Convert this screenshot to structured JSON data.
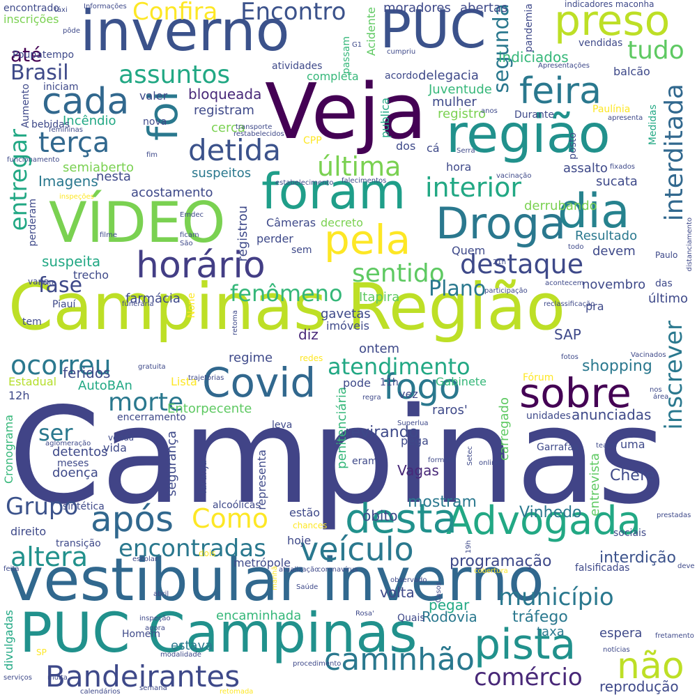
{
  "palette": {
    "dark_purple": "#440154",
    "indigo": "#3b4a8a",
    "slate_blue": "#31608d",
    "teal": "#23888e",
    "green_teal": "#22a884",
    "green": "#5ec962",
    "lime": "#bddf26",
    "yellow": "#fde725"
  },
  "words": [
    {
      "text": "Campinas",
      "color": "#414487"
    },
    {
      "text": "Campinas Região",
      "color": "#bddf26"
    },
    {
      "text": "vestibular inverno",
      "color": "#31688e"
    },
    {
      "text": "PUC Campinas",
      "color": "#21918c"
    },
    {
      "text": "VÍDEO",
      "color": "#7ad151"
    },
    {
      "text": "Veja",
      "color": "#440154"
    },
    {
      "text": "inverno",
      "color": "#3b528b"
    },
    {
      "text": "PUC",
      "color": "#3b528b"
    },
    {
      "text": "região",
      "color": "#21918c"
    },
    {
      "text": "foram",
      "color": "#1f9e89"
    },
    {
      "text": "preso",
      "color": "#bddf26"
    },
    {
      "text": "Droga",
      "color": "#2a788e"
    },
    {
      "text": "Advogada",
      "color": "#22a884"
    },
    {
      "text": "desta",
      "color": "#21918c"
    },
    {
      "text": "pista",
      "color": "#21918c"
    },
    {
      "text": "Covid",
      "color": "#31688e"
    },
    {
      "text": "sobre",
      "color": "#440154"
    },
    {
      "text": "dia",
      "color": "#26828e"
    },
    {
      "text": "pela",
      "color": "#fde725"
    },
    {
      "text": "horário",
      "color": "#433e85"
    },
    {
      "text": "cada",
      "color": "#31688e"
    },
    {
      "text": "feira",
      "color": "#2a788e"
    },
    {
      "text": "foi",
      "color": "#2a788e"
    },
    {
      "text": "após",
      "color": "#31688e"
    },
    {
      "text": "fogo",
      "color": "#2a788e"
    },
    {
      "text": "veículo",
      "color": "#2a788e"
    },
    {
      "text": "Bandeirantes",
      "color": "#3e4989"
    },
    {
      "text": "caminhão",
      "color": "#2a788e"
    },
    {
      "text": "não",
      "color": "#bddf26"
    },
    {
      "text": "comércio",
      "color": "#482878"
    },
    {
      "text": "município",
      "color": "#2a788e"
    },
    {
      "text": "encontradas",
      "color": "#2a788e"
    },
    {
      "text": "altera",
      "color": "#21918c"
    },
    {
      "text": "Como",
      "color": "#fde725"
    },
    {
      "text": "morte",
      "color": "#2a788e"
    },
    {
      "text": "ocorreu",
      "color": "#2a788e"
    },
    {
      "text": "atendimento",
      "color": "#22a884"
    },
    {
      "text": "destaque",
      "color": "#3e4989"
    },
    {
      "text": "detida",
      "color": "#3b528b"
    },
    {
      "text": "terça",
      "color": "#31688e"
    },
    {
      "text": "assuntos",
      "color": "#22a884"
    },
    {
      "text": "última",
      "color": "#7ad151"
    },
    {
      "text": "interior",
      "color": "#22a884"
    },
    {
      "text": "sentido",
      "color": "#5ec962"
    },
    {
      "text": "fenômeno",
      "color": "#35b779"
    },
    {
      "text": "interditada",
      "color": "#31688e"
    },
    {
      "text": "inscrever",
      "color": "#2a788e"
    },
    {
      "text": "entregar",
      "color": "#22a884"
    },
    {
      "text": "segunda",
      "color": "#2a788e"
    },
    {
      "text": "tudo",
      "color": "#5ec962"
    },
    {
      "text": "Encontro",
      "color": "#3b528b"
    },
    {
      "text": "Confira",
      "color": "#fde725"
    },
    {
      "text": "Brasil",
      "color": "#3e4989"
    },
    {
      "text": "até",
      "color": "#440154"
    },
    {
      "text": "ser",
      "color": "#2a788e"
    },
    {
      "text": "Grupo",
      "color": "#3b528b"
    },
    {
      "text": "fase",
      "color": "#3e4989"
    },
    {
      "text": "Plano",
      "color": "#2a788e"
    },
    {
      "text": "shopping",
      "color": "#2a788e"
    },
    {
      "text": "programação",
      "color": "#3e4989"
    },
    {
      "text": "interdição",
      "color": "#3b528b"
    },
    {
      "text": "tráfego",
      "color": "#2a788e"
    },
    {
      "text": "encaminhada",
      "color": "#35b779"
    },
    {
      "text": "Rodovia",
      "color": "#2a788e"
    },
    {
      "text": "volta",
      "color": "#3e4989"
    },
    {
      "text": "pegar",
      "color": "#22a884"
    },
    {
      "text": "estava",
      "color": "#2a788e"
    },
    {
      "text": "taxa",
      "color": "#2a788e"
    },
    {
      "text": "espera",
      "color": "#3e4989"
    },
    {
      "text": "reprodução",
      "color": "#3e4989"
    },
    {
      "text": "mostram",
      "color": "#2a788e"
    },
    {
      "text": "Vinhedo",
      "color": "#2a788e"
    },
    {
      "text": "Chefe",
      "color": "#3e4989"
    },
    {
      "text": "SAP",
      "color": "#3e4989"
    },
    {
      "text": "revirando",
      "color": "#3e4989"
    },
    {
      "text": "anunciadas",
      "color": "#3e4989"
    },
    {
      "text": "Vagas",
      "color": "#482878"
    },
    {
      "text": "óbito",
      "color": "#3e4989"
    },
    {
      "text": "moradores",
      "color": "#3e4989"
    },
    {
      "text": "abertas",
      "color": "#3e4989"
    },
    {
      "text": "indiciados",
      "color": "#35b779"
    },
    {
      "text": "delegacia",
      "color": "#3e4989"
    },
    {
      "text": "Juventude",
      "color": "#35b779"
    },
    {
      "text": "bloqueada",
      "color": "#482878"
    },
    {
      "text": "registram",
      "color": "#3e4989"
    },
    {
      "text": "suspeitos",
      "color": "#2a788e"
    },
    {
      "text": "acostamento",
      "color": "#3e4989"
    },
    {
      "text": "Imagens",
      "color": "#2a788e"
    },
    {
      "text": "semiaberto",
      "color": "#7ad151"
    },
    {
      "text": "suspeita",
      "color": "#22a884"
    },
    {
      "text": "farmácia",
      "color": "#3e4989"
    },
    {
      "text": "feridos",
      "color": "#3e4989"
    },
    {
      "text": "regime",
      "color": "#3e4989"
    },
    {
      "text": "Estadual",
      "color": "#b5de2b"
    },
    {
      "text": "AutoBAn",
      "color": "#22a884"
    },
    {
      "text": "Lista",
      "color": "#fde725"
    },
    {
      "text": "Entorpecente",
      "color": "#5ec962"
    },
    {
      "text": "gavetas",
      "color": "#3e4989"
    },
    {
      "text": "Itapira",
      "color": "#5ec962"
    },
    {
      "text": "imóveis",
      "color": "#3e4989"
    },
    {
      "text": "diz",
      "color": "#482878"
    },
    {
      "text": "ontem",
      "color": "#3e4989"
    },
    {
      "text": "Cronograma",
      "color": "#35b779"
    },
    {
      "text": "segurança",
      "color": "#3e4989"
    },
    {
      "text": "penitenciária",
      "color": "#35b779"
    },
    {
      "text": "carregado",
      "color": "#5ec962"
    },
    {
      "text": "entrevista",
      "color": "#5ec962"
    },
    {
      "text": "registrou",
      "color": "#3e4989"
    },
    {
      "text": "Câmeras",
      "color": "#3e4989"
    },
    {
      "text": "decreto",
      "color": "#7ad151"
    },
    {
      "text": "Resultado",
      "color": "#2a788e"
    },
    {
      "text": "devem",
      "color": "#3e4989"
    },
    {
      "text": "novembro",
      "color": "#3e4989"
    },
    {
      "text": "último",
      "color": "#3e4989"
    },
    {
      "text": "derrubando",
      "color": "#7ad151"
    },
    {
      "text": "sucata",
      "color": "#3e4989"
    },
    {
      "text": "assalto",
      "color": "#3e4989"
    },
    {
      "text": "hora",
      "color": "#3e4989"
    },
    {
      "text": "nesta",
      "color": "#3e4989"
    },
    {
      "text": "cerca",
      "color": "#7ad151"
    },
    {
      "text": "Incêndio",
      "color": "#22a884"
    },
    {
      "text": "publica",
      "color": "#22a884"
    },
    {
      "text": "mulher",
      "color": "#3e4989"
    },
    {
      "text": "registro",
      "color": "#7ad151"
    },
    {
      "text": "Durante",
      "color": "#3e4989"
    },
    {
      "text": "Paulínia",
      "color": "#fde725"
    },
    {
      "text": "Medidas",
      "color": "#22a884"
    },
    {
      "text": "posto",
      "color": "#3e4989"
    },
    {
      "text": "vendidas",
      "color": "#3e4989"
    },
    {
      "text": "indicadores maconha",
      "color": "#3e4989"
    },
    {
      "text": "Acidente",
      "color": "#5ec962"
    },
    {
      "text": "completa",
      "color": "#35b779"
    },
    {
      "text": "atividades",
      "color": "#3e4989"
    },
    {
      "text": "acordo",
      "color": "#3e4989"
    },
    {
      "text": "balcão",
      "color": "#3e4989"
    },
    {
      "text": "pandemia",
      "color": "#3e4989"
    },
    {
      "text": "Poupatempo",
      "color": "#3e4989"
    },
    {
      "text": "Aumento",
      "color": "#3e4989"
    },
    {
      "text": "iniciam",
      "color": "#3e4989"
    },
    {
      "text": "bebidas",
      "color": "#3e4989"
    },
    {
      "text": "valer",
      "color": "#3e4989"
    },
    {
      "text": "nova",
      "color": "#3e4989"
    },
    {
      "text": "dos",
      "color": "#3e4989"
    },
    {
      "text": "cá",
      "color": "#3e4989"
    },
    {
      "text": "CPP",
      "color": "#fde725"
    },
    {
      "text": "inscrições",
      "color": "#7ad151"
    },
    {
      "text": "encontrado",
      "color": "#3e4989"
    },
    {
      "text": "perderam",
      "color": "#3e4989"
    },
    {
      "text": "perder",
      "color": "#3e4989"
    },
    {
      "text": "sem",
      "color": "#3e4989"
    },
    {
      "text": "trecho",
      "color": "#3e4989"
    },
    {
      "text": "varia",
      "color": "#3e4989"
    },
    {
      "text": "Piauí",
      "color": "#3e4989"
    },
    {
      "text": "tem",
      "color": "#3e4989"
    },
    {
      "text": "None",
      "color": "#fde725"
    },
    {
      "text": "Quem",
      "color": "#3e4989"
    },
    {
      "text": "pra",
      "color": "#3e4989"
    },
    {
      "text": "12h",
      "color": "#3e4989"
    },
    {
      "text": "pode",
      "color": "#3e4989"
    },
    {
      "text": "11h",
      "color": "#3e4989"
    },
    {
      "text": "Gabinete",
      "color": "#35b779"
    },
    {
      "text": "vez",
      "color": "#3e4989"
    },
    {
      "text": "raros'",
      "color": "#3e4989"
    },
    {
      "text": "Fórum",
      "color": "#fde725"
    },
    {
      "text": "unidades",
      "color": "#3e4989"
    },
    {
      "text": "uma",
      "color": "#3e4989"
    },
    {
      "text": "vida",
      "color": "#3e4989"
    },
    {
      "text": "detentos",
      "color": "#3e4989"
    },
    {
      "text": "meses",
      "color": "#3e4989"
    },
    {
      "text": "doença",
      "color": "#3e4989"
    },
    {
      "text": "pega",
      "color": "#3e4989"
    },
    {
      "text": "eram",
      "color": "#3e4989"
    },
    {
      "text": "Garrafas",
      "color": "#3e4989"
    },
    {
      "text": "representa",
      "color": "#3e4989"
    },
    {
      "text": "leva",
      "color": "#3e4989"
    },
    {
      "text": "sintética",
      "color": "#3e4989"
    },
    {
      "text": "laranja",
      "color": "#3e4989"
    },
    {
      "text": "alcoólicas",
      "color": "#3e4989"
    },
    {
      "text": "direito",
      "color": "#3e4989"
    },
    {
      "text": "transição",
      "color": "#3e4989"
    },
    {
      "text": "hoje",
      "color": "#3e4989"
    },
    {
      "text": "estão",
      "color": "#3e4989"
    },
    {
      "text": "metrópole",
      "color": "#3e4989"
    },
    {
      "text": "chances",
      "color": "#fde725"
    },
    {
      "text": "dois",
      "color": "#fde725"
    },
    {
      "text": "sociais",
      "color": "#3e4989"
    },
    {
      "text": "falsificadas",
      "color": "#3e4989"
    },
    {
      "text": "Quais",
      "color": "#3e4989"
    },
    {
      "text": "Homem",
      "color": "#3e4989"
    },
    {
      "text": "divulgadas",
      "color": "#22a884"
    },
    {
      "text": "SP",
      "color": "#fde725"
    },
    {
      "text": "encerramento",
      "color": "#3e4989"
    },
    {
      "text": "venda",
      "color": "#3e4989"
    },
    {
      "text": "G1",
      "color": "#3e4989"
    },
    {
      "text": "passam",
      "color": "#35b779"
    },
    {
      "text": "táxi",
      "color": "#3e4989"
    },
    {
      "text": "pôde",
      "color": "#3e4989"
    },
    {
      "text": "Informações",
      "color": "#3e4989"
    },
    {
      "text": "cumpriu",
      "color": "#3e4989"
    },
    {
      "text": "Apresentações",
      "color": "#3e4989"
    },
    {
      "text": "anos",
      "color": "#3e4989"
    },
    {
      "text": "apresenta",
      "color": "#3e4989"
    },
    {
      "text": "transporte",
      "color": "#3e4989"
    },
    {
      "text": "restabelecidos",
      "color": "#3e4989"
    },
    {
      "text": "femininas",
      "color": "#3e4989"
    },
    {
      "text": "funcionamento",
      "color": "#3e4989"
    },
    {
      "text": "fim",
      "color": "#3e4989"
    },
    {
      "text": "Serra",
      "color": "#3e4989"
    },
    {
      "text": "fixados",
      "color": "#3e4989"
    },
    {
      "text": "vacinação",
      "color": "#3e4989"
    },
    {
      "text": "estabelecimento",
      "color": "#3e4989"
    },
    {
      "text": "falecimentos",
      "color": "#3e4989"
    },
    {
      "text": "inspeções",
      "color": "#fde725"
    },
    {
      "text": "Emdec",
      "color": "#3e4989"
    },
    {
      "text": "filme",
      "color": "#3e4989"
    },
    {
      "text": "ficam",
      "color": "#3e4989"
    },
    {
      "text": "São",
      "color": "#3e4989"
    },
    {
      "text": "todo",
      "color": "#3e4989"
    },
    {
      "text": "Paulo",
      "color": "#3e4989"
    },
    {
      "text": "21h",
      "color": "#3e4989"
    },
    {
      "text": "distanciamento",
      "color": "#3e4989"
    },
    {
      "text": "noite",
      "color": "#3e4989"
    },
    {
      "text": "acontecem",
      "color": "#3e4989"
    },
    {
      "text": "participação",
      "color": "#3e4989"
    },
    {
      "text": "reclassificação",
      "color": "#3e4989"
    },
    {
      "text": "das",
      "color": "#3e4989"
    },
    {
      "text": "funerária",
      "color": "#3e4989"
    },
    {
      "text": "retoma",
      "color": "#3e4989"
    },
    {
      "text": "gratuita",
      "color": "#3e4989"
    },
    {
      "text": "trajetórias",
      "color": "#3e4989"
    },
    {
      "text": "redes",
      "color": "#fde725"
    },
    {
      "text": "fotos",
      "color": "#3e4989"
    },
    {
      "text": "Vacinados",
      "color": "#3e4989"
    },
    {
      "text": "nos",
      "color": "#3e4989"
    },
    {
      "text": "área",
      "color": "#3e4989"
    },
    {
      "text": "regra",
      "color": "#3e4989"
    },
    {
      "text": "Superlua",
      "color": "#3e4989"
    },
    {
      "text": "teatro",
      "color": "#3e4989"
    },
    {
      "text": "aglomeração",
      "color": "#3e4989"
    },
    {
      "text": "formato",
      "color": "#3e4989"
    },
    {
      "text": "online",
      "color": "#3e4989"
    },
    {
      "text": "Setec",
      "color": "#3e4989"
    },
    {
      "text": "escolar",
      "color": "#3e4989"
    },
    {
      "text": "atualização",
      "color": "#3e4989"
    },
    {
      "text": "coronavírus",
      "color": "#3e4989"
    },
    {
      "text": "cobertura",
      "color": "#fde725"
    },
    {
      "text": "observado",
      "color": "#3e4989"
    },
    {
      "text": "Saúde",
      "color": "#3e4989"
    },
    {
      "text": "Casos",
      "color": "#3e4989"
    },
    {
      "text": "19h",
      "color": "#3e4989"
    },
    {
      "text": "prestadas",
      "color": "#3e4989"
    },
    {
      "text": "deve",
      "color": "#3e4989"
    },
    {
      "text": "feita",
      "color": "#3e4989"
    },
    {
      "text": "abril",
      "color": "#3e4989"
    },
    {
      "text": "manhã",
      "color": "#fde725"
    },
    {
      "text": "Rosa'",
      "color": "#3e4989"
    },
    {
      "text": "inspeção",
      "color": "#3e4989"
    },
    {
      "text": "agora",
      "color": "#3e4989"
    },
    {
      "text": "modalidade",
      "color": "#3e4989"
    },
    {
      "text": "fretamento",
      "color": "#3e4989"
    },
    {
      "text": "notícias",
      "color": "#3e4989"
    },
    {
      "text": "serviços",
      "color": "#3e4989"
    },
    {
      "text": "multa",
      "color": "#3e4989"
    },
    {
      "text": "procedimento",
      "color": "#3e4989"
    },
    {
      "text": "calendários",
      "color": "#3e4989"
    },
    {
      "text": "semana",
      "color": "#3e4989"
    },
    {
      "text": "retomada",
      "color": "#fde725"
    }
  ]
}
